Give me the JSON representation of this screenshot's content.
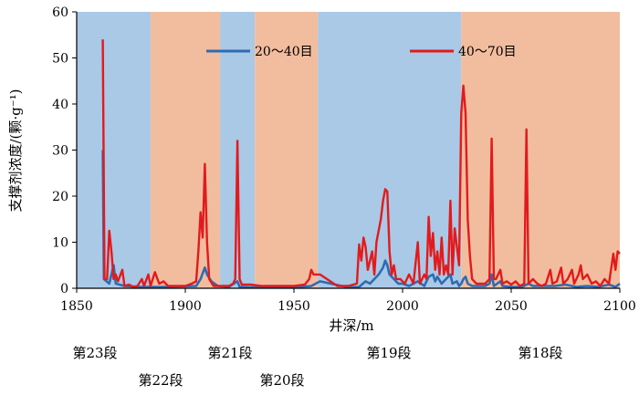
{
  "chart_data": {
    "type": "line",
    "title": "",
    "xlabel": "井深/m",
    "ylabel": "支撑剂浓度/(颗·g⁻¹)",
    "xlim": [
      1850,
      2100
    ],
    "ylim": [
      0,
      60
    ],
    "xticks": [
      1850,
      1900,
      1950,
      2000,
      2050,
      2100
    ],
    "yticks": [
      0,
      10,
      20,
      30,
      40,
      50,
      60
    ],
    "grid": false,
    "legend_position": "top",
    "stages": [
      {
        "label": "第23段",
        "from": 1850,
        "to": 1884,
        "color": "#a9c9e6",
        "row": 1
      },
      {
        "label": "第22段",
        "from": 1884,
        "to": 1916,
        "color": "#f2bd9e",
        "row": 2
      },
      {
        "label": "第21段",
        "from": 1916,
        "to": 1932,
        "color": "#a9c9e6",
        "row": 1
      },
      {
        "label": "第20段",
        "from": 1932,
        "to": 1961,
        "color": "#f2bd9e",
        "row": 2
      },
      {
        "label": "第19段",
        "from": 1961,
        "to": 2027,
        "color": "#a9c9e6",
        "row": 1
      },
      {
        "label": "第18段",
        "from": 2027,
        "to": 2100,
        "color": "#f2bd9e",
        "row": 1
      }
    ],
    "series": [
      {
        "name": "20～40目",
        "color": "#2e6bb3",
        "points": [
          [
            1862,
            30
          ],
          [
            1862.5,
            2
          ],
          [
            1865,
            1
          ],
          [
            1867,
            5
          ],
          [
            1868,
            1
          ],
          [
            1872,
            0.5
          ],
          [
            1880,
            0.3
          ],
          [
            1890,
            0.3
          ],
          [
            1905,
            0.5
          ],
          [
            1907,
            2
          ],
          [
            1909,
            4.5
          ],
          [
            1910,
            3
          ],
          [
            1912,
            1.5
          ],
          [
            1915,
            0.5
          ],
          [
            1920,
            0.3
          ],
          [
            1924,
            1.5
          ],
          [
            1925,
            0.3
          ],
          [
            1930,
            0.2
          ],
          [
            1940,
            0.2
          ],
          [
            1950,
            0.2
          ],
          [
            1958,
            0.5
          ],
          [
            1962,
            1.5
          ],
          [
            1975,
            0.2
          ],
          [
            1980,
            0.3
          ],
          [
            1983,
            1.5
          ],
          [
            1985,
            1
          ],
          [
            1987,
            2
          ],
          [
            1989,
            3
          ],
          [
            1991,
            4.5
          ],
          [
            1992,
            6
          ],
          [
            1993,
            5
          ],
          [
            1994,
            3
          ],
          [
            1996,
            2
          ],
          [
            1998,
            1
          ],
          [
            2000,
            1
          ],
          [
            2003,
            0.5
          ],
          [
            2007,
            1.5
          ],
          [
            2010,
            0.5
          ],
          [
            2012,
            2.5
          ],
          [
            2014,
            3
          ],
          [
            2015,
            1.5
          ],
          [
            2016,
            2.5
          ],
          [
            2018,
            1
          ],
          [
            2020,
            2
          ],
          [
            2022,
            3
          ],
          [
            2023,
            1
          ],
          [
            2025,
            1.5
          ],
          [
            2026,
            0.5
          ],
          [
            2027,
            1
          ],
          [
            2028,
            2
          ],
          [
            2029,
            2.5
          ],
          [
            2030,
            1
          ],
          [
            2032,
            0.5
          ],
          [
            2035,
            0.5
          ],
          [
            2038,
            0.5
          ],
          [
            2040,
            1
          ],
          [
            2041,
            3
          ],
          [
            2042,
            0.5
          ],
          [
            2045,
            1.5
          ],
          [
            2046,
            0.5
          ],
          [
            2050,
            0.3
          ],
          [
            2055,
            0.3
          ],
          [
            2058,
            1
          ],
          [
            2060,
            0.5
          ],
          [
            2065,
            0.5
          ],
          [
            2070,
            0.5
          ],
          [
            2075,
            0.8
          ],
          [
            2080,
            0.3
          ],
          [
            2085,
            0.5
          ],
          [
            2090,
            0.3
          ],
          [
            2095,
            0.8
          ],
          [
            2098,
            0.3
          ],
          [
            2100,
            1
          ]
        ]
      },
      {
        "name": "40～70目",
        "color": "#e31a1c",
        "points": [
          [
            1862,
            54
          ],
          [
            1862.8,
            2
          ],
          [
            1864,
            2
          ],
          [
            1865,
            12.5
          ],
          [
            1866,
            8
          ],
          [
            1867,
            2
          ],
          [
            1868,
            3
          ],
          [
            1869,
            1.5
          ],
          [
            1871,
            4
          ],
          [
            1872,
            0.5
          ],
          [
            1874,
            0.8
          ],
          [
            1876,
            0.3
          ],
          [
            1878,
            0.5
          ],
          [
            1880,
            2
          ],
          [
            1881,
            0.5
          ],
          [
            1883,
            3
          ],
          [
            1884,
            0.5
          ],
          [
            1886,
            3.5
          ],
          [
            1888,
            1
          ],
          [
            1890,
            1.5
          ],
          [
            1892,
            0.5
          ],
          [
            1895,
            0.5
          ],
          [
            1900,
            0.5
          ],
          [
            1903,
            1
          ],
          [
            1905,
            1.5
          ],
          [
            1906,
            8
          ],
          [
            1907,
            16.5
          ],
          [
            1908,
            11
          ],
          [
            1909,
            27
          ],
          [
            1910,
            10
          ],
          [
            1911,
            2
          ],
          [
            1913,
            0.5
          ],
          [
            1915,
            0.5
          ],
          [
            1920,
            0.5
          ],
          [
            1922,
            1
          ],
          [
            1923,
            2
          ],
          [
            1924,
            32
          ],
          [
            1925,
            2
          ],
          [
            1926,
            0.8
          ],
          [
            1930,
            0.8
          ],
          [
            1935,
            0.5
          ],
          [
            1940,
            0.5
          ],
          [
            1945,
            0.5
          ],
          [
            1950,
            0.5
          ],
          [
            1955,
            0.8
          ],
          [
            1957,
            2
          ],
          [
            1958,
            4
          ],
          [
            1959,
            3
          ],
          [
            1962,
            3
          ],
          [
            1970,
            0.5
          ],
          [
            1975,
            0.5
          ],
          [
            1979,
            1
          ],
          [
            1980,
            9.5
          ],
          [
            1981,
            6
          ],
          [
            1982,
            11
          ],
          [
            1983,
            9
          ],
          [
            1984,
            4
          ],
          [
            1985,
            6
          ],
          [
            1986,
            8
          ],
          [
            1987,
            3
          ],
          [
            1988,
            10
          ],
          [
            1990,
            15
          ],
          [
            1991,
            19
          ],
          [
            1992,
            21.5
          ],
          [
            1993,
            21
          ],
          [
            1994,
            8
          ],
          [
            1995,
            3
          ],
          [
            1996,
            5
          ],
          [
            1997,
            2
          ],
          [
            1999,
            2
          ],
          [
            2001,
            1
          ],
          [
            2003,
            3
          ],
          [
            2005,
            1
          ],
          [
            2007,
            10
          ],
          [
            2008,
            1
          ],
          [
            2010,
            3
          ],
          [
            2011,
            2
          ],
          [
            2012,
            15.5
          ],
          [
            2013,
            7
          ],
          [
            2014,
            12
          ],
          [
            2015,
            4
          ],
          [
            2016,
            8
          ],
          [
            2017,
            3
          ],
          [
            2018,
            11
          ],
          [
            2019,
            3
          ],
          [
            2020,
            5
          ],
          [
            2021,
            3
          ],
          [
            2022,
            19
          ],
          [
            2023,
            3
          ],
          [
            2024,
            13
          ],
          [
            2025,
            9
          ],
          [
            2026,
            5
          ],
          [
            2027,
            38
          ],
          [
            2028,
            44
          ],
          [
            2029,
            38
          ],
          [
            2030,
            15
          ],
          [
            2031,
            7
          ],
          [
            2032,
            2
          ],
          [
            2034,
            1
          ],
          [
            2036,
            1
          ],
          [
            2038,
            1
          ],
          [
            2040,
            2
          ],
          [
            2041,
            32.5
          ],
          [
            2042,
            2
          ],
          [
            2043,
            2
          ],
          [
            2045,
            4
          ],
          [
            2046,
            1
          ],
          [
            2048,
            1.5
          ],
          [
            2050,
            0.8
          ],
          [
            2052,
            1.5
          ],
          [
            2054,
            0.5
          ],
          [
            2056,
            1
          ],
          [
            2057,
            34.5
          ],
          [
            2058,
            1
          ],
          [
            2060,
            2
          ],
          [
            2062,
            1
          ],
          [
            2064,
            0.5
          ],
          [
            2066,
            1
          ],
          [
            2068,
            4
          ],
          [
            2069,
            1
          ],
          [
            2071,
            1.5
          ],
          [
            2073,
            4.5
          ],
          [
            2074,
            1
          ],
          [
            2076,
            2
          ],
          [
            2078,
            4
          ],
          [
            2079,
            1
          ],
          [
            2081,
            3
          ],
          [
            2082,
            5
          ],
          [
            2083,
            2
          ],
          [
            2085,
            3
          ],
          [
            2087,
            1
          ],
          [
            2089,
            1.5
          ],
          [
            2091,
            0.5
          ],
          [
            2093,
            2
          ],
          [
            2095,
            1
          ],
          [
            2097,
            7.5
          ],
          [
            2098,
            4
          ],
          [
            2099,
            8
          ],
          [
            2100,
            7.5
          ]
        ]
      }
    ]
  }
}
